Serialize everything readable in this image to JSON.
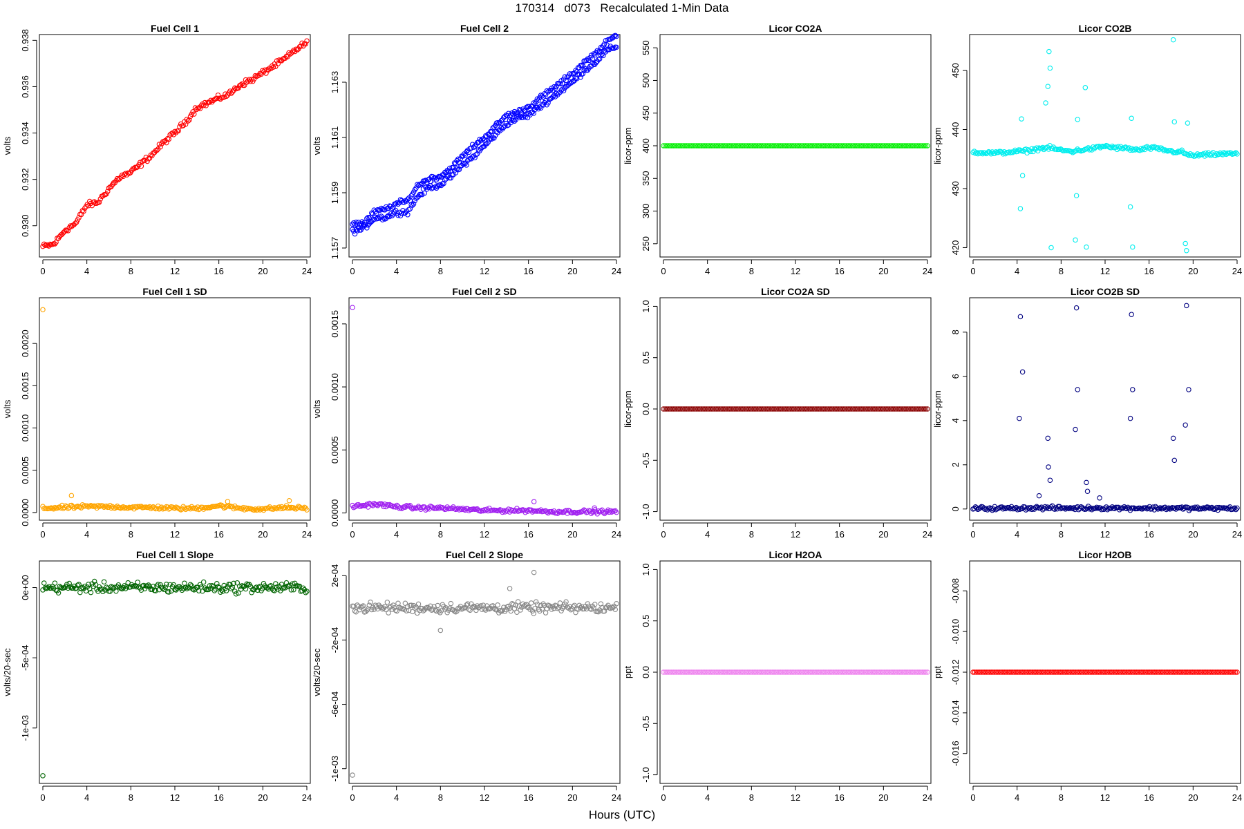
{
  "header": {
    "title": "170314   d073   Recalculated 1-Min Data",
    "xlabel": "Hours (UTC)"
  },
  "chart_data": [
    {
      "type": "scatter",
      "title": "Fuel Cell 1",
      "ylabel": "volts",
      "color": "#ff0000",
      "xlim": [
        0,
        24
      ],
      "ylim": [
        0.9288,
        0.9381
      ],
      "xticks": [
        "0",
        "4",
        "8",
        "12",
        "16",
        "20",
        "24"
      ],
      "yticks": [
        "0.930",
        "0.932",
        "0.934",
        "0.936",
        "0.938"
      ],
      "series": [
        {
          "x": [
            0,
            1,
            2,
            3,
            4,
            5,
            6,
            7,
            8,
            9,
            10,
            11,
            12,
            13,
            14,
            15,
            16,
            17,
            18,
            19,
            20,
            21,
            22,
            23,
            24
          ],
          "y": [
            0.9291,
            0.9292,
            0.9298,
            0.9301,
            0.9309,
            0.931,
            0.9316,
            0.9321,
            0.9323,
            0.9327,
            0.9331,
            0.9336,
            0.934,
            0.9345,
            0.9351,
            0.9353,
            0.9355,
            0.9357,
            0.9361,
            0.9363,
            0.9366,
            0.9369,
            0.9372,
            0.9376,
            0.9379
          ]
        }
      ]
    },
    {
      "type": "scatter",
      "title": "Fuel Cell 2",
      "ylabel": "volts",
      "color": "#0000ff",
      "xlim": [
        0,
        24
      ],
      "ylim": [
        1.1568,
        1.1646
      ],
      "xticks": [
        "0",
        "4",
        "8",
        "12",
        "16",
        "20",
        "24"
      ],
      "yticks": [
        "1.157",
        "1.159",
        "1.161",
        "1.163"
      ],
      "series": [
        {
          "x": [
            0,
            1,
            2,
            3,
            4,
            5,
            6,
            7,
            8,
            9,
            10,
            11,
            12,
            13,
            14,
            15,
            16,
            17,
            18,
            19,
            20,
            21,
            22,
            23,
            24
          ],
          "y": [
            1.1576,
            1.1577,
            1.1581,
            1.1581,
            1.1583,
            1.1583,
            1.1589,
            1.1592,
            1.1593,
            1.1596,
            1.16,
            1.1603,
            1.1607,
            1.1611,
            1.1615,
            1.1617,
            1.1618,
            1.1621,
            1.1624,
            1.1627,
            1.163,
            1.1634,
            1.1637,
            1.1641,
            1.1643
          ]
        },
        {
          "x": [
            0,
            1,
            2,
            3,
            4,
            5,
            6,
            7,
            8,
            9,
            10,
            11,
            12,
            13,
            14,
            15,
            16,
            17,
            18,
            19,
            20,
            21,
            22,
            23,
            24
          ],
          "y": [
            1.1579,
            1.1579,
            1.1583,
            1.1584,
            1.1586,
            1.1587,
            1.1593,
            1.1595,
            1.1596,
            1.1599,
            1.1603,
            1.1607,
            1.161,
            1.1614,
            1.1618,
            1.1619,
            1.1621,
            1.1624,
            1.1627,
            1.163,
            1.1633,
            1.1637,
            1.164,
            1.1644,
            1.1647
          ]
        }
      ]
    },
    {
      "type": "scatter",
      "title": "Licor CO2A",
      "ylabel": "licor-ppm",
      "color": "#00ee00",
      "xlim": [
        0,
        24
      ],
      "ylim": [
        235,
        565
      ],
      "xticks": [
        "0",
        "4",
        "8",
        "12",
        "16",
        "20",
        "24"
      ],
      "yticks": [
        "250",
        "300",
        "350",
        "400",
        "450",
        "500",
        "550"
      ],
      "series": [
        {
          "x": [
            0,
            24
          ],
          "y": [
            400,
            400
          ]
        }
      ]
    },
    {
      "type": "scatter",
      "title": "Licor CO2B",
      "ylabel": "licor-ppm",
      "color": "#00eeee",
      "xlim": [
        0,
        24
      ],
      "ylim": [
        419,
        455.5
      ],
      "xticks": [
        "0",
        "4",
        "8",
        "12",
        "16",
        "20",
        "24"
      ],
      "yticks": [
        "420",
        "430",
        "440",
        "450"
      ],
      "series": [
        {
          "x": [
            0,
            2,
            4,
            5,
            6,
            7,
            8,
            9,
            10,
            11,
            12,
            13,
            14,
            15,
            16,
            17,
            18,
            19,
            19.5,
            20,
            21,
            22,
            23,
            24
          ],
          "y": [
            436.2,
            436.0,
            436.3,
            436.4,
            436.8,
            436.9,
            436.5,
            436.3,
            436.6,
            436.8,
            437.2,
            436.9,
            436.8,
            436.5,
            436.9,
            436.7,
            436.3,
            436.2,
            435.7,
            435.6,
            435.7,
            435.8,
            435.9,
            435.9
          ]
        },
        {
          "x": [
            4.3,
            4.4,
            4.5,
            6.6,
            6.8,
            6.9,
            7.0,
            7.1,
            9.3,
            9.4,
            9.5,
            10.2,
            10.3,
            14.3,
            14.4,
            14.5,
            18.2,
            18.3,
            19.3,
            19.4,
            19.5
          ],
          "y": [
            426.6,
            441.8,
            432.2,
            444.5,
            447.3,
            453.2,
            450.4,
            420.0,
            421.3,
            428.8,
            441.7,
            447.1,
            420.1,
            426.9,
            441.9,
            420.1,
            455.2,
            441.3,
            420.7,
            419.5,
            441.1
          ]
        }
      ]
    },
    {
      "type": "scatter",
      "title": "Fuel Cell 1 SD",
      "ylabel": "volts",
      "color": "#ffa500",
      "xlim": [
        0,
        24
      ],
      "ylim": [
        -5e-05,
        0.0025
      ],
      "xticks": [
        "0",
        "4",
        "8",
        "12",
        "16",
        "20",
        "24"
      ],
      "yticks": [
        "0.0000",
        "0.0005",
        "0.0010",
        "0.0015",
        "0.0020"
      ],
      "series": [
        {
          "x": [
            0,
            2,
            4,
            6,
            8,
            10,
            12,
            14,
            16,
            18,
            20,
            22,
            24
          ],
          "y": [
            5e-05,
            6e-05,
            7e-05,
            7e-05,
            6e-05,
            6e-05,
            5e-05,
            5e-05,
            8e-05,
            5e-05,
            4e-05,
            6e-05,
            5e-05
          ]
        },
        {
          "x": [
            0,
            2.6,
            16.8,
            22.4
          ],
          "y": [
            0.0024,
            0.0002,
            0.00013,
            0.00014
          ]
        }
      ]
    },
    {
      "type": "scatter",
      "title": "Fuel Cell 2 SD",
      "ylabel": "volts",
      "color": "#a020f0",
      "xlim": [
        0,
        24
      ],
      "ylim": [
        -3e-05,
        0.00168
      ],
      "xticks": [
        "0",
        "4",
        "8",
        "12",
        "16",
        "20",
        "24"
      ],
      "yticks": [
        "0.0000",
        "0.0005",
        "0.0010",
        "0.0015"
      ],
      "series": [
        {
          "x": [
            0,
            2,
            4,
            6,
            8,
            10,
            12,
            14,
            16,
            18,
            20,
            22,
            24
          ],
          "y": [
            5e-05,
            7e-05,
            5e-05,
            4e-05,
            4e-05,
            3e-05,
            2e-05,
            2e-05,
            2e-05,
            1e-05,
            1e-05,
            1e-05,
            1e-05
          ]
        },
        {
          "x": [
            0,
            16.5,
            22
          ],
          "y": [
            0.00163,
            9e-05,
            4e-05
          ]
        }
      ]
    },
    {
      "type": "scatter",
      "title": "Licor CO2A SD",
      "ylabel": "licor-ppm",
      "color": "#8b0000",
      "xlim": [
        0,
        24
      ],
      "ylim": [
        -1.05,
        1.05
      ],
      "xticks": [
        "0",
        "4",
        "8",
        "12",
        "16",
        "20",
        "24"
      ],
      "yticks": [
        "-1.0",
        "-0.5",
        "0.0",
        "0.5",
        "1.0"
      ],
      "series": [
        {
          "x": [
            0,
            24
          ],
          "y": [
            0,
            0
          ]
        }
      ]
    },
    {
      "type": "scatter",
      "title": "Licor CO2B SD",
      "ylabel": "licor-ppm",
      "color": "#000080",
      "xlim": [
        0,
        24
      ],
      "ylim": [
        -0.35,
        9.4
      ],
      "xticks": [
        "0",
        "4",
        "8",
        "12",
        "16",
        "20",
        "24"
      ],
      "yticks": [
        "0",
        "2",
        "4",
        "6",
        "8"
      ],
      "series": [
        {
          "x": [
            0,
            2,
            4,
            6,
            8,
            10,
            12,
            14,
            16,
            18,
            20,
            22,
            24
          ],
          "y": [
            0.03,
            0.03,
            0.04,
            0.05,
            0.04,
            0.04,
            0.05,
            0.04,
            0.04,
            0.04,
            0.03,
            0.03,
            0.03
          ]
        },
        {
          "x": [
            4.2,
            4.3,
            4.5,
            6.8,
            6.85,
            9.3,
            9.4,
            9.5,
            14.3,
            14.4,
            14.5,
            18.2,
            18.3,
            19.3,
            19.4,
            19.6,
            7.0,
            10.3,
            10.4,
            11.5,
            6.0
          ],
          "y": [
            4.1,
            8.7,
            6.2,
            3.2,
            1.9,
            3.6,
            9.1,
            5.4,
            4.1,
            8.8,
            5.4,
            3.2,
            2.2,
            3.8,
            9.2,
            5.4,
            1.3,
            1.2,
            0.8,
            0.5,
            0.6
          ]
        }
      ]
    },
    {
      "type": "scatter",
      "title": "Fuel Cell 1 Slope",
      "ylabel": "volts/20-sec",
      "color": "#006400",
      "xlim": [
        0,
        24
      ],
      "ylim": [
        -0.00137,
        0.000165
      ],
      "xticks": [
        "0",
        "4",
        "8",
        "12",
        "16",
        "20",
        "24"
      ],
      "yticks": [
        "-1e-03",
        "-5e-04",
        "0e+00"
      ],
      "series": [
        {
          "x": [
            0,
            2,
            4,
            6,
            8,
            10,
            12,
            14,
            16,
            18,
            20,
            22,
            24
          ],
          "y": [
            0,
            0,
            0,
            0,
            0,
            0,
            0,
            0,
            0,
            0,
            0,
            0,
            0
          ]
        },
        {
          "x": [
            0
          ],
          "y": [
            -0.00134
          ]
        }
      ]
    },
    {
      "type": "scatter",
      "title": "Fuel Cell 2 Slope",
      "ylabel": "volts/20-sec",
      "color": "#888888",
      "xlim": [
        0,
        24
      ],
      "ylim": [
        -0.00107,
        0.00027
      ],
      "xticks": [
        "0",
        "4",
        "8",
        "12",
        "16",
        "20",
        "24"
      ],
      "yticks": [
        "-1e-03",
        "-6e-04",
        "-2e-04",
        "2e-04"
      ],
      "series": [
        {
          "x": [
            0,
            2,
            4,
            6,
            8,
            10,
            12,
            14,
            16,
            18,
            20,
            22,
            24
          ],
          "y": [
            0,
            0,
            0,
            0,
            0,
            0,
            0,
            0,
            0,
            0,
            0,
            0,
            0
          ]
        },
        {
          "x": [
            0,
            16.5,
            8,
            14.3
          ],
          "y": [
            -0.00104,
            0.00022,
            -0.00014,
            0.00012
          ]
        }
      ]
    },
    {
      "type": "scatter",
      "title": "Licor H2OA",
      "ylabel": "ppt",
      "color": "#ee82ee",
      "xlim": [
        0,
        24
      ],
      "ylim": [
        -1.05,
        1.05
      ],
      "xticks": [
        "0",
        "4",
        "8",
        "12",
        "16",
        "20",
        "24"
      ],
      "yticks": [
        "-1.0",
        "-0.5",
        "0.0",
        "0.5",
        "1.0"
      ],
      "series": [
        {
          "x": [
            0,
            24
          ],
          "y": [
            0,
            0
          ]
        }
      ]
    },
    {
      "type": "scatter",
      "title": "Licor H2OB",
      "ylabel": "ppt",
      "color": "#ff0000",
      "xlim": [
        0,
        24
      ],
      "ylim": [
        -0.0173,
        -0.0067
      ],
      "xticks": [
        "0",
        "4",
        "8",
        "12",
        "16",
        "20",
        "24"
      ],
      "yticks": [
        "-0.016",
        "-0.014",
        "-0.012",
        "-0.010",
        "-0.008"
      ],
      "series": [
        {
          "x": [
            0,
            24
          ],
          "y": [
            -0.012,
            -0.012
          ]
        }
      ]
    }
  ]
}
